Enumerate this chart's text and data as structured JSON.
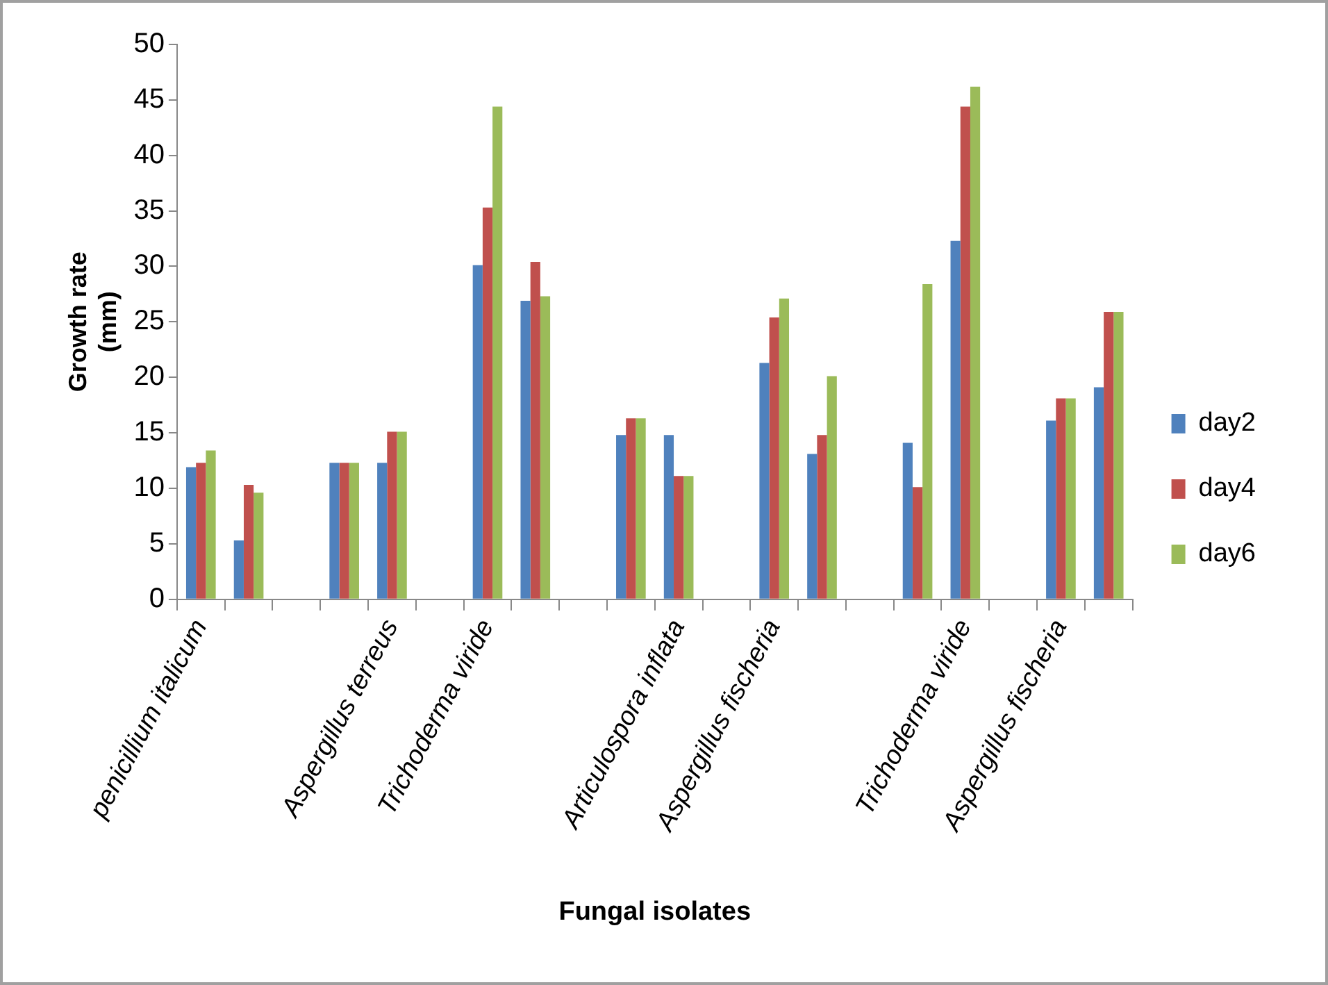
{
  "chart_data": {
    "type": "bar",
    "xlabel": "Fungal isolates",
    "ylabel": "Growth rate (mm)",
    "categories": [
      "penicillium italicum",
      null,
      null,
      null,
      "Aspergillus terreus",
      null,
      "Trichoderma viride",
      null,
      null,
      null,
      "Articulospora inflata",
      null,
      "Aspergillus fischeria",
      null,
      null,
      null,
      "Trichoderma viride",
      null,
      "Aspergillus fischeria",
      null
    ],
    "series": [
      {
        "name": "day2",
        "color": "#4f81bd",
        "values": [
          11.9,
          5.3,
          null,
          12.3,
          12.3,
          null,
          30.1,
          26.9,
          null,
          14.8,
          14.8,
          null,
          21.3,
          13.1,
          null,
          14.1,
          32.3,
          null,
          16.1,
          19.1
        ]
      },
      {
        "name": "day4",
        "color": "#c0504d",
        "values": [
          12.3,
          10.3,
          null,
          12.3,
          15.1,
          null,
          35.3,
          30.4,
          null,
          16.3,
          11.1,
          null,
          25.4,
          14.8,
          null,
          10.1,
          44.4,
          null,
          18.1,
          25.9
        ]
      },
      {
        "name": "day6",
        "color": "#9bbb59",
        "values": [
          13.4,
          9.6,
          null,
          12.3,
          15.1,
          null,
          44.4,
          27.3,
          null,
          16.3,
          11.1,
          null,
          27.1,
          20.1,
          null,
          28.4,
          46.2,
          null,
          18.1,
          25.9
        ]
      }
    ],
    "ylim": [
      0,
      50
    ],
    "yticks": [
      0,
      5,
      10,
      15,
      20,
      25,
      30,
      35,
      40,
      45,
      50
    ],
    "grid": false,
    "legend": "right"
  }
}
